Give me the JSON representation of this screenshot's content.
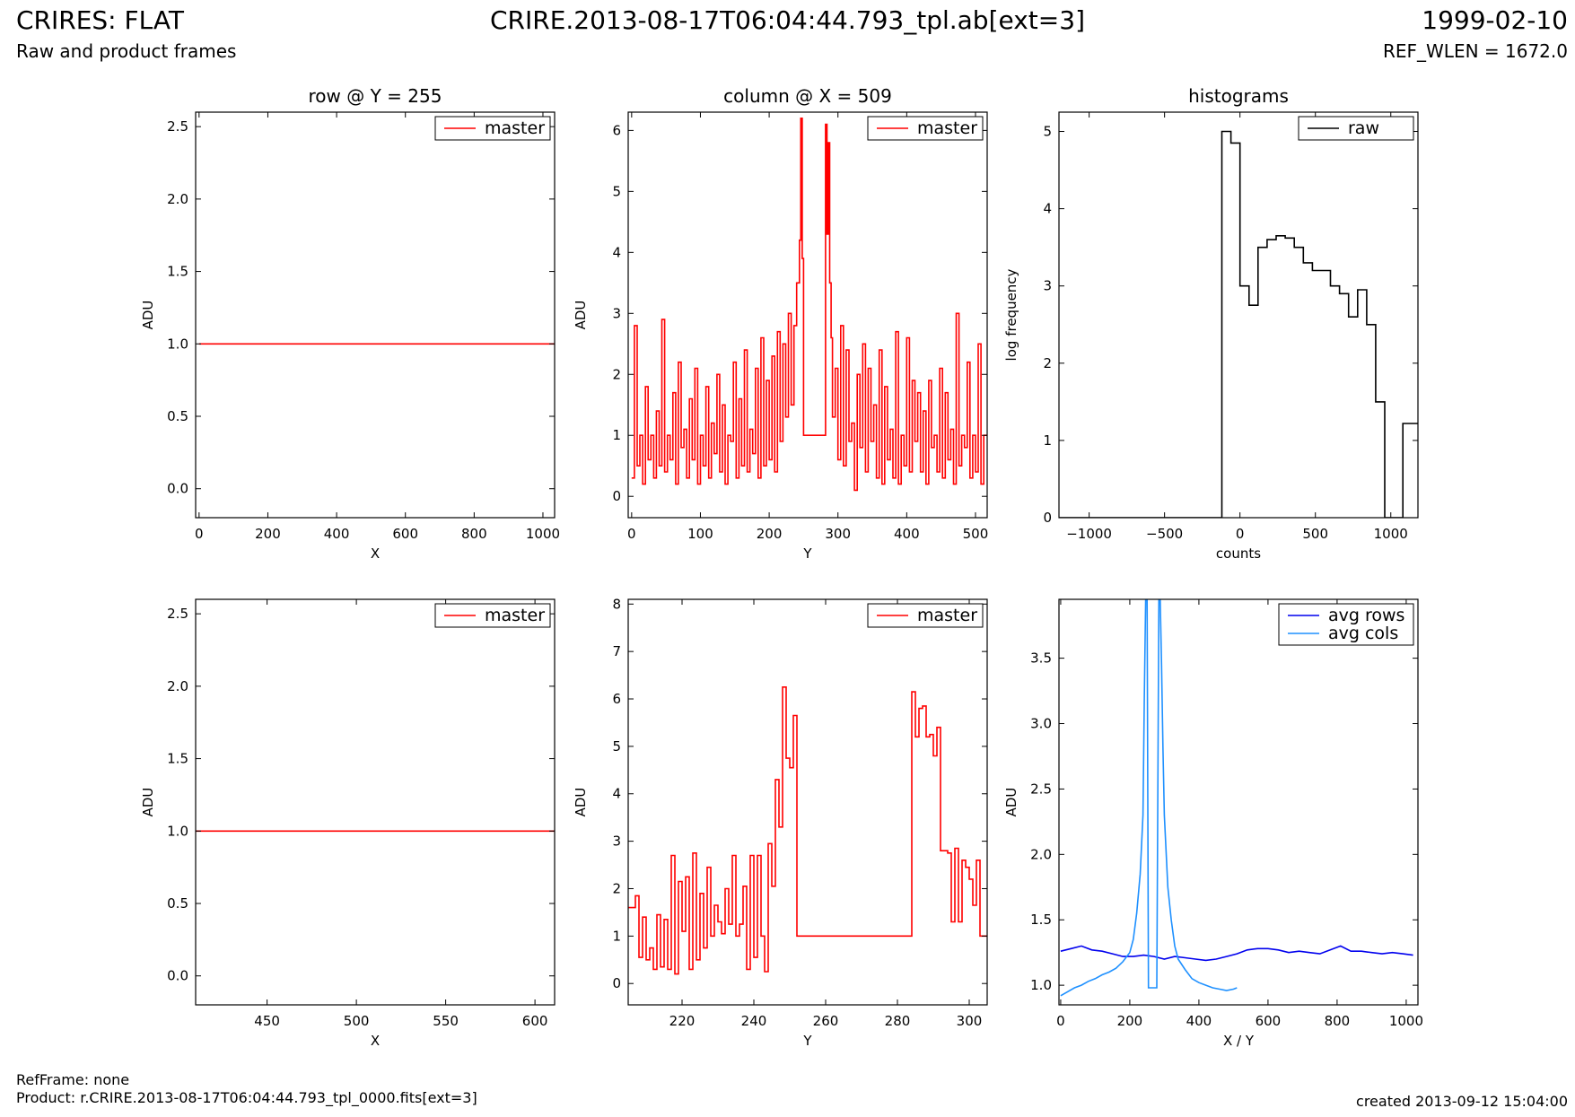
{
  "header": {
    "title_left": "CRIRES: FLAT",
    "title_center": "CRIRE.2013-08-17T06:04:44.793_tpl.ab[ext=3]",
    "title_right": "1999-02-10",
    "subtitle_left": "Raw and product frames",
    "subtitle_right": "REF_WLEN = 1672.0"
  },
  "footer": {
    "refframe": "RefFrame: none",
    "product": "Product: r.CRIRE.2013-08-17T06:04:44.793_tpl_0000.fits[ext=3]",
    "created": "created 2013-09-12 15:04:00"
  },
  "colors": {
    "master": "#ff0000",
    "raw": "#000000",
    "avg_rows": "#0000ee",
    "avg_cols": "#1e90ff"
  },
  "chart_data": [
    {
      "id": "row_full",
      "type": "line",
      "title": "row @ Y = 255",
      "xlabel": "X",
      "ylabel": "ADU",
      "xlim": [
        -10,
        1034
      ],
      "ylim": [
        -0.2,
        2.6
      ],
      "xticks": [
        0,
        200,
        400,
        600,
        800,
        1000
      ],
      "yticks": [
        0.0,
        0.5,
        1.0,
        1.5,
        2.0,
        2.5
      ],
      "ytick_labels": [
        "0.0",
        "0.5",
        "1.0",
        "1.5",
        "2.0",
        "2.5"
      ],
      "legend": "top-right",
      "series": [
        {
          "name": "master",
          "color": "#ff0000",
          "x": [
            0,
            1034
          ],
          "y": [
            1.0,
            1.0
          ]
        }
      ]
    },
    {
      "id": "col_full",
      "type": "line",
      "title": "column @ X = 509",
      "xlabel": "Y",
      "ylabel": "ADU",
      "xlim": [
        -5,
        517
      ],
      "ylim": [
        -0.35,
        6.3
      ],
      "xticks": [
        0,
        100,
        200,
        300,
        400,
        500
      ],
      "yticks": [
        0,
        1,
        2,
        3,
        4,
        5,
        6
      ],
      "ytick_labels": [
        "0",
        "1",
        "2",
        "3",
        "4",
        "5",
        "6"
      ],
      "legend": "top-right",
      "series": [
        {
          "name": "master",
          "color": "#ff0000",
          "step": true,
          "x": [
            0,
            4,
            8,
            12,
            16,
            20,
            24,
            28,
            32,
            36,
            40,
            44,
            48,
            52,
            56,
            60,
            64,
            68,
            72,
            76,
            80,
            84,
            88,
            92,
            96,
            100,
            104,
            108,
            112,
            116,
            120,
            124,
            128,
            132,
            136,
            140,
            144,
            148,
            152,
            156,
            160,
            164,
            168,
            172,
            176,
            180,
            184,
            188,
            192,
            196,
            200,
            204,
            208,
            212,
            216,
            220,
            224,
            228,
            232,
            236,
            240,
            244,
            246,
            248,
            250,
            252,
            254,
            256,
            282,
            284,
            286,
            288,
            290,
            292,
            296,
            300,
            304,
            308,
            312,
            316,
            320,
            324,
            328,
            332,
            336,
            340,
            344,
            348,
            352,
            356,
            360,
            364,
            368,
            372,
            376,
            380,
            384,
            388,
            392,
            396,
            400,
            404,
            408,
            412,
            416,
            420,
            424,
            428,
            432,
            436,
            440,
            444,
            448,
            452,
            456,
            460,
            464,
            468,
            472,
            476,
            480,
            484,
            488,
            492,
            496,
            500,
            504,
            508,
            512
          ],
          "y": [
            0.3,
            2.8,
            0.5,
            1.0,
            0.2,
            1.8,
            0.6,
            1.0,
            0.3,
            1.4,
            0.5,
            2.9,
            0.4,
            1.0,
            0.6,
            1.7,
            0.2,
            2.2,
            0.8,
            1.1,
            0.3,
            1.6,
            0.6,
            2.1,
            0.2,
            1.0,
            0.5,
            1.8,
            0.3,
            1.2,
            0.7,
            2.0,
            0.4,
            1.5,
            0.2,
            1.0,
            0.9,
            2.2,
            0.3,
            1.6,
            0.5,
            2.4,
            0.4,
            1.1,
            0.7,
            2.1,
            0.3,
            2.6,
            0.5,
            1.9,
            0.6,
            2.3,
            0.4,
            2.7,
            0.9,
            2.5,
            1.3,
            3.0,
            1.5,
            2.8,
            3.5,
            4.2,
            6.2,
            3.9,
            1.0,
            1.0,
            1.0,
            1.0,
            6.1,
            4.3,
            5.8,
            3.5,
            2.6,
            1.3,
            2.1,
            0.6,
            2.8,
            0.5,
            2.4,
            0.9,
            1.2,
            0.1,
            2.0,
            0.8,
            2.5,
            0.4,
            2.1,
            0.9,
            1.5,
            0.3,
            2.4,
            0.2,
            1.8,
            0.6,
            1.1,
            0.3,
            2.7,
            0.2,
            1.0,
            0.5,
            2.6,
            0.4,
            1.9,
            0.9,
            1.7,
            0.4,
            1.4,
            0.2,
            1.9,
            0.8,
            1.0,
            0.4,
            2.1,
            0.3,
            1.7,
            0.6,
            1.1,
            0.2,
            3.0,
            0.5,
            1.0,
            0.8,
            2.2,
            0.3,
            1.0,
            0.4,
            2.5,
            0.2,
            1.0
          ]
        }
      ]
    },
    {
      "id": "hist",
      "type": "line",
      "title": "histograms",
      "xlabel": "counts",
      "ylabel": "log frequency",
      "xlim": [
        -1200,
        1180
      ],
      "ylim": [
        0,
        5.25
      ],
      "xticks": [
        -1000,
        -500,
        0,
        500,
        1000
      ],
      "xtick_labels": [
        "−1000",
        "−500",
        "0",
        "500",
        "1000"
      ],
      "yticks": [
        0,
        1,
        2,
        3,
        4,
        5
      ],
      "ytick_labels": [
        "0",
        "1",
        "2",
        "3",
        "4",
        "5"
      ],
      "legend": "top-right",
      "series": [
        {
          "name": "raw",
          "color": "#000000",
          "x": [
            -1200,
            -120,
            -120,
            -60,
            -60,
            0,
            0,
            60,
            60,
            120,
            120,
            180,
            180,
            240,
            240,
            300,
            300,
            360,
            360,
            420,
            420,
            480,
            480,
            540,
            540,
            600,
            600,
            660,
            660,
            720,
            720,
            780,
            780,
            840,
            840,
            900,
            900,
            960,
            960,
            1020,
            1020,
            1080,
            1080,
            1110,
            1110,
            1180
          ],
          "y": [
            0,
            0,
            5.0,
            5.0,
            4.85,
            4.85,
            3.0,
            3.0,
            2.75,
            2.75,
            3.5,
            3.5,
            3.6,
            3.6,
            3.65,
            3.65,
            3.62,
            3.62,
            3.5,
            3.5,
            3.3,
            3.3,
            3.2,
            3.2,
            3.2,
            3.2,
            3.0,
            3.0,
            2.9,
            2.9,
            2.6,
            2.6,
            2.95,
            2.95,
            2.5,
            2.5,
            1.5,
            1.5,
            0,
            0,
            0,
            0,
            1.22,
            1.22,
            1.22,
            1.22
          ]
        }
      ]
    },
    {
      "id": "row_zoom",
      "type": "line",
      "title": "",
      "xlabel": "X",
      "ylabel": "ADU",
      "xlim": [
        410,
        611
      ],
      "ylim": [
        -0.2,
        2.6
      ],
      "xticks": [
        450,
        500,
        550,
        600
      ],
      "yticks": [
        0.0,
        0.5,
        1.0,
        1.5,
        2.0,
        2.5
      ],
      "ytick_labels": [
        "0.0",
        "0.5",
        "1.0",
        "1.5",
        "2.0",
        "2.5"
      ],
      "legend": "top-right",
      "series": [
        {
          "name": "master",
          "color": "#ff0000",
          "x": [
            410,
            611
          ],
          "y": [
            1.0,
            1.0
          ]
        }
      ]
    },
    {
      "id": "col_zoom",
      "type": "line",
      "title": "",
      "xlabel": "Y",
      "ylabel": "ADU",
      "xlim": [
        205,
        305
      ],
      "ylim": [
        -0.45,
        8.1
      ],
      "xticks": [
        220,
        240,
        260,
        280,
        300
      ],
      "yticks": [
        0,
        1,
        2,
        3,
        4,
        5,
        6,
        7,
        8
      ],
      "ytick_labels": [
        "0",
        "1",
        "2",
        "3",
        "4",
        "5",
        "6",
        "7",
        "8"
      ],
      "legend": "top-right",
      "series": [
        {
          "name": "master",
          "color": "#ff0000",
          "step": true,
          "x": [
            205,
            207,
            208,
            209,
            210,
            211,
            212,
            213,
            214,
            215,
            216,
            217,
            218,
            219,
            220,
            221,
            222,
            223,
            224,
            225,
            226,
            227,
            228,
            229,
            230,
            231,
            232,
            233,
            234,
            235,
            236,
            237,
            238,
            239,
            240,
            241,
            242,
            243,
            244,
            245,
            246,
            247,
            248,
            249,
            250,
            251,
            252,
            284,
            285,
            286,
            287,
            288,
            289,
            290,
            291,
            292,
            293,
            294,
            295,
            296,
            297,
            298,
            299,
            300,
            301,
            302,
            303,
            304
          ],
          "y": [
            1.6,
            1.85,
            0.55,
            1.4,
            0.5,
            0.75,
            0.3,
            1.45,
            0.35,
            1.35,
            0.3,
            2.7,
            0.2,
            2.15,
            1.1,
            2.25,
            0.3,
            2.75,
            0.5,
            1.9,
            0.75,
            2.45,
            1.0,
            1.65,
            1.3,
            1.05,
            2.0,
            1.25,
            2.7,
            1.0,
            1.25,
            2.05,
            0.3,
            2.7,
            0.55,
            2.7,
            1.0,
            0.25,
            2.95,
            2.05,
            4.3,
            3.3,
            6.25,
            4.75,
            4.55,
            5.65,
            1.0,
            6.15,
            5.2,
            5.8,
            5.85,
            5.2,
            5.25,
            4.8,
            5.4,
            2.8,
            2.8,
            2.75,
            1.3,
            2.85,
            1.3,
            2.6,
            2.45,
            2.2,
            1.65,
            2.6,
            1.0,
            1.0
          ]
        }
      ]
    },
    {
      "id": "avg",
      "type": "line",
      "title": "",
      "xlabel": "X / Y",
      "ylabel": "ADU",
      "xlim": [
        -5,
        1034
      ],
      "ylim": [
        0.85,
        3.95
      ],
      "xticks": [
        0,
        200,
        400,
        600,
        800,
        1000
      ],
      "yticks": [
        1.0,
        1.5,
        2.0,
        2.5,
        3.0,
        3.5
      ],
      "ytick_labels": [
        "1.0",
        "1.5",
        "2.0",
        "2.5",
        "3.0",
        "3.5"
      ],
      "legend": "top-right",
      "series": [
        {
          "name": "avg rows",
          "color": "#0000ee",
          "x": [
            0,
            30,
            60,
            90,
            120,
            150,
            180,
            210,
            240,
            270,
            300,
            330,
            360,
            390,
            420,
            450,
            480,
            510,
            540,
            570,
            600,
            630,
            660,
            690,
            720,
            750,
            780,
            810,
            840,
            870,
            900,
            930,
            960,
            990,
            1020
          ],
          "y": [
            1.26,
            1.28,
            1.3,
            1.27,
            1.26,
            1.24,
            1.22,
            1.22,
            1.23,
            1.22,
            1.2,
            1.22,
            1.21,
            1.2,
            1.19,
            1.2,
            1.22,
            1.24,
            1.27,
            1.28,
            1.28,
            1.27,
            1.25,
            1.26,
            1.25,
            1.24,
            1.27,
            1.3,
            1.26,
            1.26,
            1.25,
            1.24,
            1.25,
            1.24,
            1.23
          ]
        },
        {
          "name": "avg cols",
          "color": "#1e90ff",
          "x": [
            0,
            20,
            40,
            60,
            80,
            100,
            120,
            140,
            160,
            180,
            200,
            210,
            220,
            230,
            238,
            242,
            246,
            250,
            254,
            262,
            270,
            278,
            284,
            288,
            292,
            296,
            300,
            310,
            320,
            330,
            340,
            360,
            380,
            400,
            420,
            440,
            460,
            480,
            500,
            510
          ],
          "y": [
            0.92,
            0.95,
            0.98,
            1.0,
            1.03,
            1.05,
            1.08,
            1.1,
            1.13,
            1.18,
            1.25,
            1.35,
            1.55,
            1.85,
            2.3,
            3.2,
            3.95,
            3.95,
            0.98,
            0.98,
            0.98,
            0.98,
            3.95,
            3.95,
            3.45,
            2.8,
            2.3,
            1.75,
            1.5,
            1.3,
            1.2,
            1.12,
            1.05,
            1.02,
            1.0,
            0.98,
            0.97,
            0.96,
            0.97,
            0.98
          ]
        }
      ]
    }
  ]
}
